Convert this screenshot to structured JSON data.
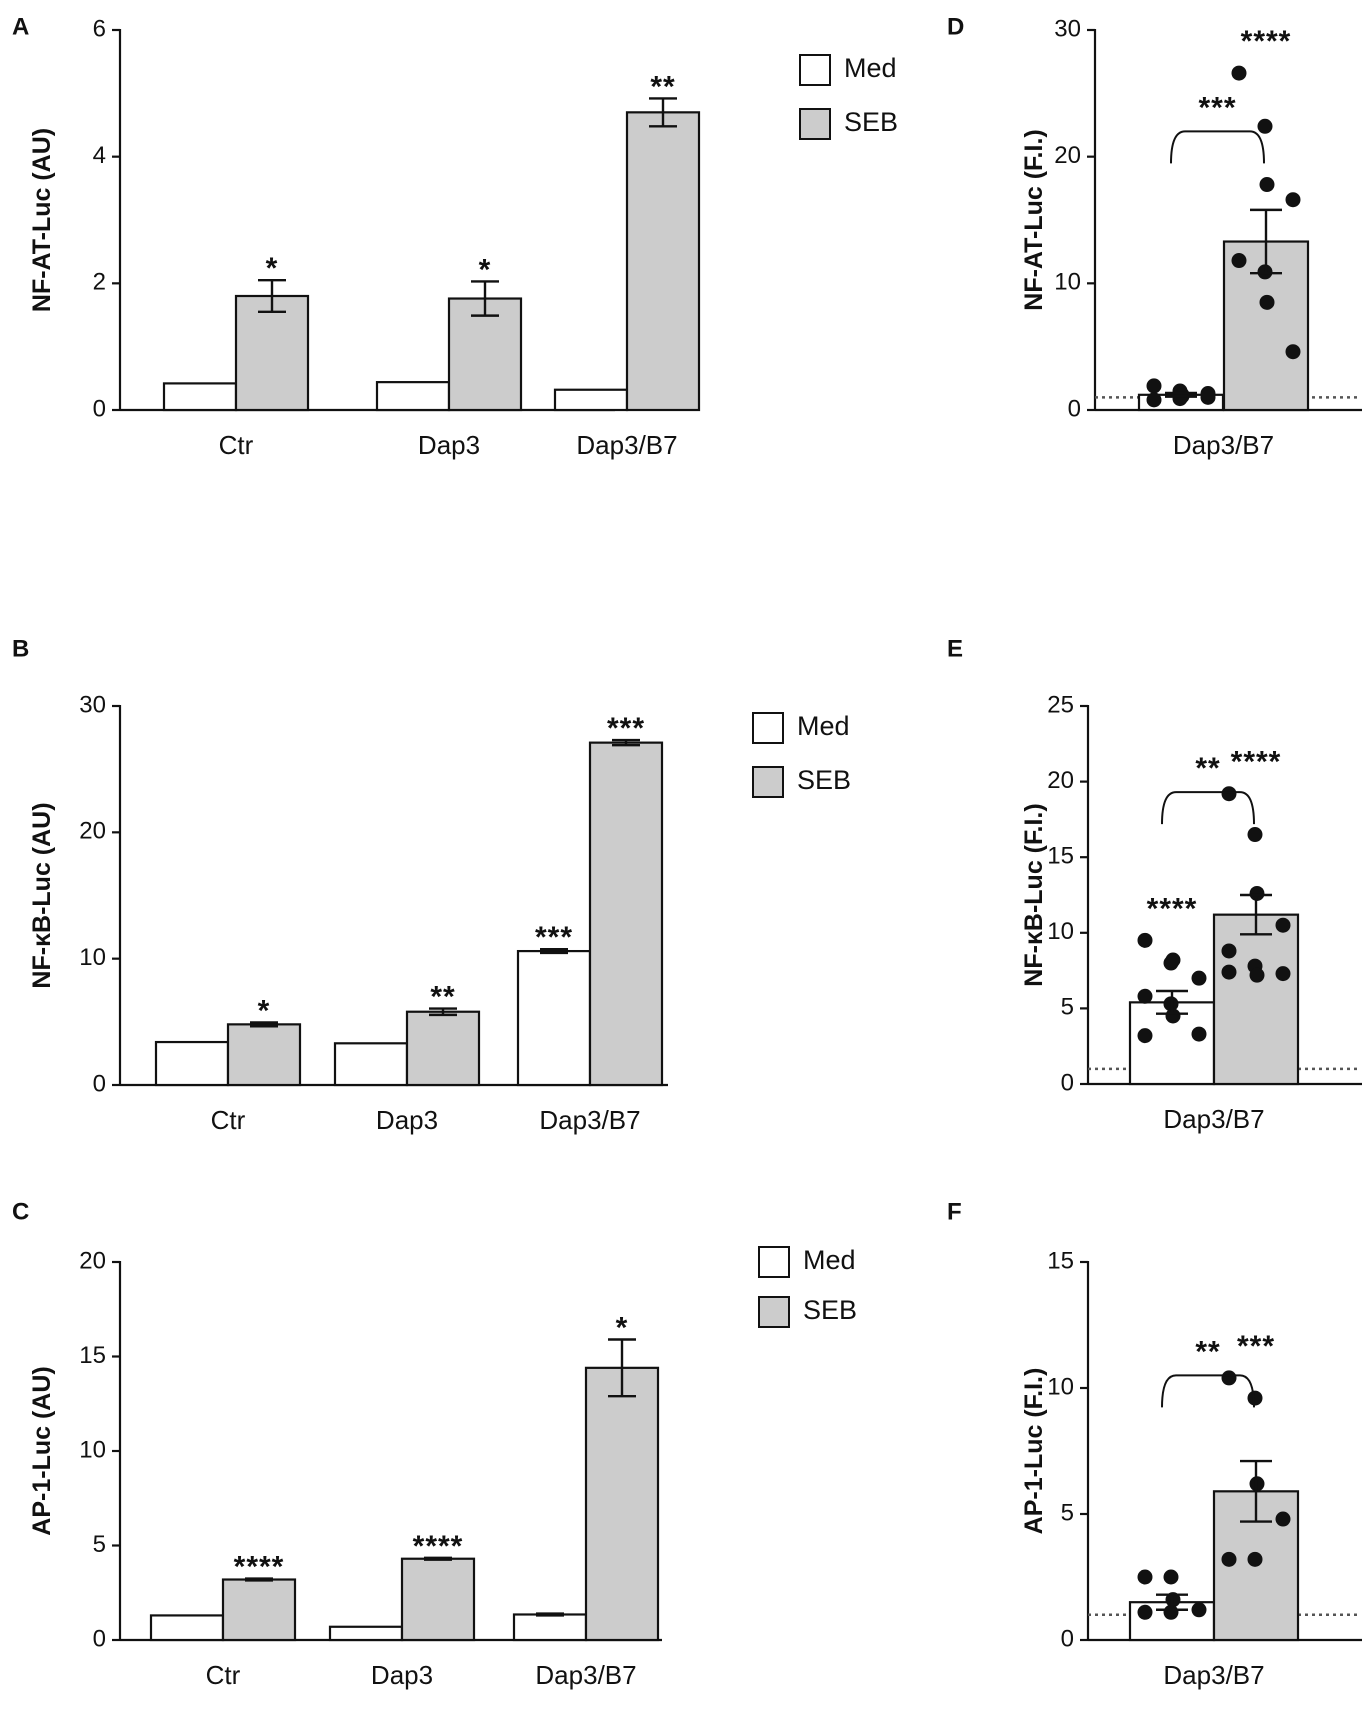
{
  "colors": {
    "med": "#ffffff",
    "seb": "#cccccc",
    "ink": "#111111",
    "point": "#111111"
  },
  "chart_data": [
    {
      "id": "A",
      "letter": "A",
      "type": "bar",
      "title": "",
      "xlabel": "",
      "ylabel": "NF-AT-Luc (AU)",
      "ylim": [
        0,
        6
      ],
      "yticks": [
        0,
        2,
        4,
        6
      ],
      "categories": [
        "Ctr",
        "Dap3",
        "Dap3/B7"
      ],
      "series": [
        {
          "name": "Med",
          "values": [
            0.42,
            0.44,
            0.32
          ],
          "errors": [
            0,
            0,
            0
          ],
          "stars": [
            "",
            "",
            ""
          ]
        },
        {
          "name": "SEB",
          "values": [
            1.8,
            1.76,
            4.7
          ],
          "errors": [
            0.25,
            0.27,
            0.22
          ],
          "stars": [
            "*",
            "*",
            "**"
          ]
        }
      ],
      "legend": [
        "Med",
        "SEB"
      ],
      "legend_position": "right"
    },
    {
      "id": "B",
      "letter": "B",
      "type": "bar",
      "title": "",
      "xlabel": "",
      "ylabel": "NF-κB-Luc (AU)",
      "ylim": [
        0,
        30
      ],
      "yticks": [
        0,
        10,
        20,
        30
      ],
      "categories": [
        "Ctr",
        "Dap3",
        "Dap3/B7"
      ],
      "series": [
        {
          "name": "Med",
          "values": [
            3.4,
            3.3,
            10.6
          ],
          "errors": [
            0,
            0,
            0.15
          ],
          "stars": [
            "",
            "",
            "***"
          ]
        },
        {
          "name": "SEB",
          "values": [
            4.8,
            5.8,
            27.1
          ],
          "errors": [
            0.15,
            0.25,
            0.2
          ],
          "stars": [
            "*",
            "**",
            "***"
          ]
        }
      ],
      "legend": [
        "Med",
        "SEB"
      ],
      "legend_position": "right"
    },
    {
      "id": "C",
      "letter": "C",
      "type": "bar",
      "title": "",
      "xlabel": "",
      "ylabel": "AP-1-Luc (AU)",
      "ylim": [
        0,
        20
      ],
      "yticks": [
        0,
        5,
        10,
        15,
        20
      ],
      "categories": [
        "Ctr",
        "Dap3",
        "Dap3/B7"
      ],
      "series": [
        {
          "name": "Med",
          "values": [
            1.3,
            0.7,
            1.35
          ],
          "errors": [
            0,
            0,
            0.05
          ],
          "stars": [
            "",
            "",
            ""
          ]
        },
        {
          "name": "SEB",
          "values": [
            3.2,
            4.3,
            14.4
          ],
          "errors": [
            0.05,
            0.05,
            1.5
          ],
          "stars": [
            "****",
            "****",
            "*"
          ]
        }
      ],
      "legend": [
        "Med",
        "SEB"
      ],
      "legend_position": "right"
    },
    {
      "id": "D",
      "letter": "D",
      "type": "bar",
      "title": "",
      "xlabel": "Dap3/B7",
      "ylabel": "NF-AT-Luc (F.I.)",
      "ylim": [
        0,
        30
      ],
      "yticks": [
        0,
        10,
        20,
        30
      ],
      "reference_line": 1,
      "bars": [
        {
          "name": "Med",
          "mean": 1.2,
          "sem": 0.15,
          "stars": "",
          "points": [
            1.9,
            1.5,
            1.2,
            1.0,
            0.8,
            0.9,
            1.1,
            1.3
          ]
        },
        {
          "name": "SEB",
          "mean": 13.3,
          "sem": 2.5,
          "stars": "****",
          "points": [
            26.6,
            22.4,
            17.8,
            16.6,
            11.8,
            10.9,
            8.5,
            4.6
          ]
        }
      ],
      "bracket": {
        "label": "***",
        "level": 22.0
      }
    },
    {
      "id": "E",
      "letter": "E",
      "type": "bar",
      "title": "",
      "xlabel": "Dap3/B7",
      "ylabel": "NF-κB-Luc (F.I.)",
      "ylim": [
        0,
        25
      ],
      "yticks": [
        0,
        5,
        10,
        15,
        20,
        25
      ],
      "reference_line": 1,
      "bars": [
        {
          "name": "Med",
          "mean": 5.4,
          "sem": 0.75,
          "stars": "****",
          "points": [
            9.5,
            8.0,
            8.2,
            7.0,
            5.8,
            5.3,
            4.5,
            3.3,
            3.2
          ]
        },
        {
          "name": "SEB",
          "mean": 11.2,
          "sem": 1.3,
          "stars": "****",
          "points": [
            19.2,
            16.5,
            12.6,
            10.5,
            8.8,
            7.8,
            7.2,
            7.3,
            7.4
          ]
        }
      ],
      "bracket": {
        "label": "**",
        "level": 19.3
      }
    },
    {
      "id": "F",
      "letter": "F",
      "type": "bar",
      "title": "",
      "xlabel": "Dap3/B7",
      "ylabel": "AP-1-Luc (F.I.)",
      "ylim": [
        0,
        15
      ],
      "yticks": [
        0,
        5,
        10,
        15
      ],
      "reference_line": 1,
      "bars": [
        {
          "name": "Med",
          "mean": 1.5,
          "sem": 0.3,
          "stars": "",
          "points": [
            2.5,
            2.5,
            1.6,
            1.2,
            1.1,
            1.1
          ]
        },
        {
          "name": "SEB",
          "mean": 5.9,
          "sem": 1.2,
          "stars": "***",
          "points": [
            10.4,
            9.6,
            6.2,
            4.8,
            3.2,
            3.2
          ]
        }
      ],
      "bracket": {
        "label": "**",
        "level": 10.5
      }
    }
  ]
}
